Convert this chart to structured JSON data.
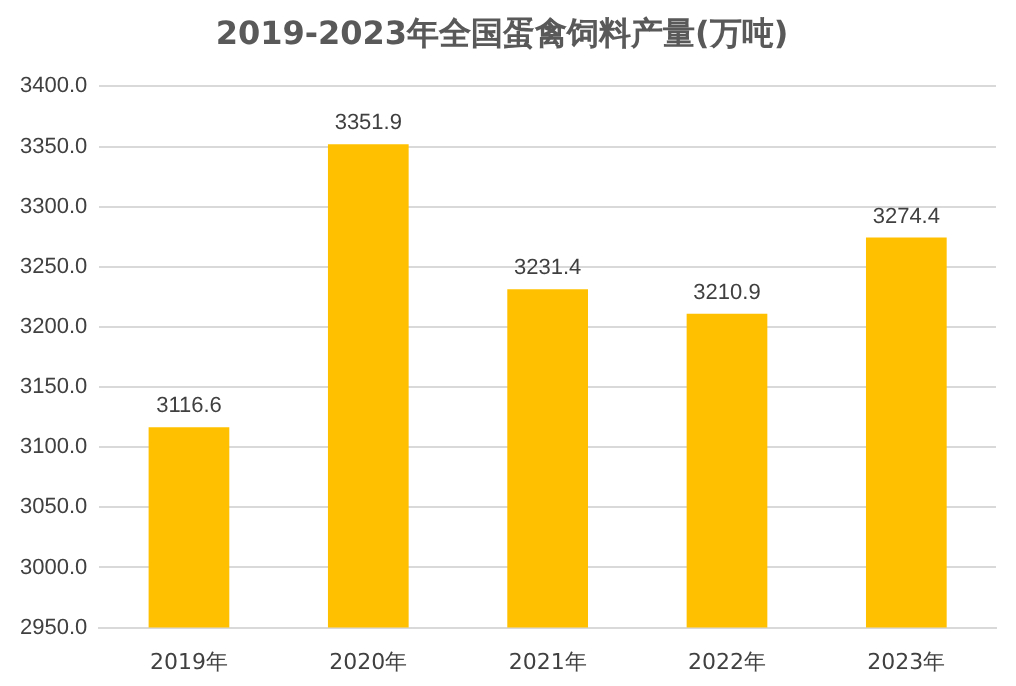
{
  "chart_data": {
    "type": "bar",
    "title": "2019-2023年全国蛋禽饲料产量(万吨)",
    "categories": [
      "2019年",
      "2020年",
      "2021年",
      "2022年",
      "2023年"
    ],
    "values": [
      3116.6,
      3351.9,
      3231.4,
      3210.9,
      3274.4
    ],
    "color": "#ffc000",
    "ylim": [
      2950,
      3400
    ],
    "yticks": [
      {
        "value": 2950,
        "label": "2950.0"
      },
      {
        "value": 3000,
        "label": "3000.0"
      },
      {
        "value": 3050,
        "label": "3050.0"
      },
      {
        "value": 3100,
        "label": "3100.0"
      },
      {
        "value": 3150,
        "label": "3150.0"
      },
      {
        "value": 3200,
        "label": "3200.0"
      },
      {
        "value": 3250,
        "label": "3250.0"
      },
      {
        "value": 3300,
        "label": "3300.0"
      },
      {
        "value": 3350,
        "label": "3350.0"
      },
      {
        "value": 3400,
        "label": "3400.0"
      }
    ],
    "grid": "y",
    "data_labels": true,
    "legend": false
  }
}
